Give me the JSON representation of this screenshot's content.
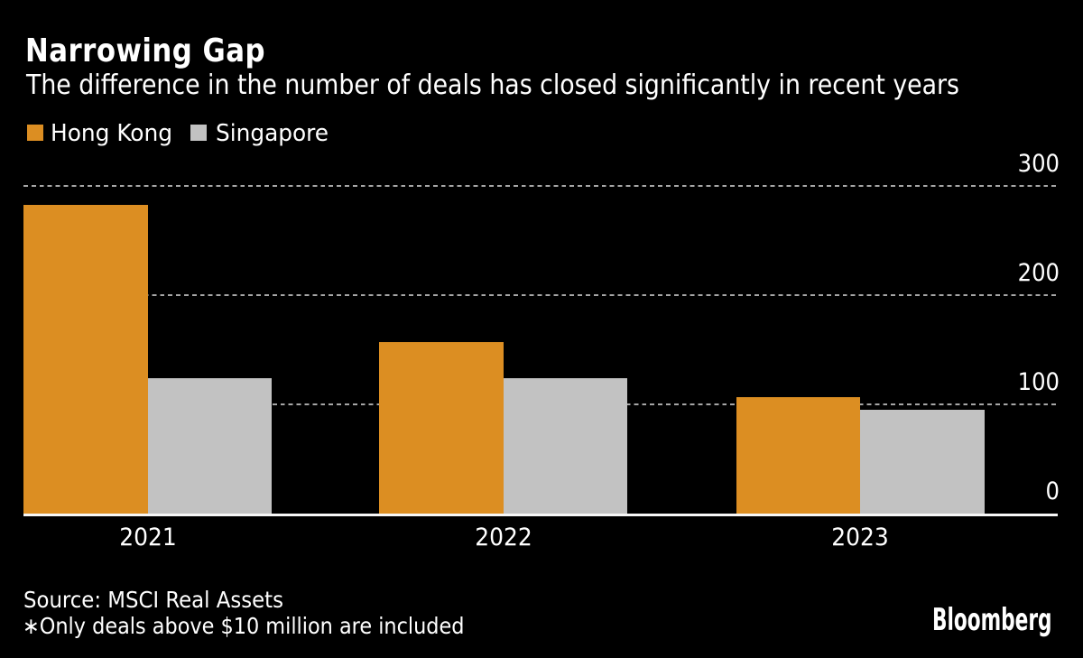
{
  "title": "Narrowing Gap",
  "subtitle": "The difference in the number of deals has closed significantly in recent years",
  "legend": {
    "items": [
      {
        "label": "Hong Kong",
        "color": "#dc8e22"
      },
      {
        "label": "Singapore",
        "color": "#c2c2c2"
      }
    ]
  },
  "footer": {
    "source_line": "Source: MSCI Real Assets",
    "note_line": "∗Only deals above $10 million are included"
  },
  "logo_text": "Bloomberg",
  "colors": {
    "background": "#000000",
    "hong_kong_bar": "#dc8e22",
    "singapore_bar": "#c2c2c2",
    "gridline": "#a6a6a6",
    "axis_line": "#f7f7f7",
    "text": "#ffffff"
  },
  "chart_data": {
    "type": "bar",
    "title": "Narrowing Gap",
    "subtitle": "The difference in the number of deals has closed significantly in recent years",
    "categories": [
      "2021",
      "2022",
      "2023"
    ],
    "series": [
      {
        "name": "Hong Kong",
        "color": "#dc8e22",
        "values": [
          283,
          157,
          107
        ]
      },
      {
        "name": "Singapore",
        "color": "#c2c2c2",
        "values": [
          124,
          124,
          95
        ]
      }
    ],
    "xlabel": "",
    "ylabel": "",
    "ylim": [
      0,
      300
    ],
    "yticks": [
      300,
      200,
      100,
      0
    ],
    "grid": "horizontal-dashed",
    "y_axis_side": "right",
    "legend_position": "top-left",
    "source": "Source: MSCI Real Assets",
    "note": "∗Only deals above $10 million are included"
  }
}
